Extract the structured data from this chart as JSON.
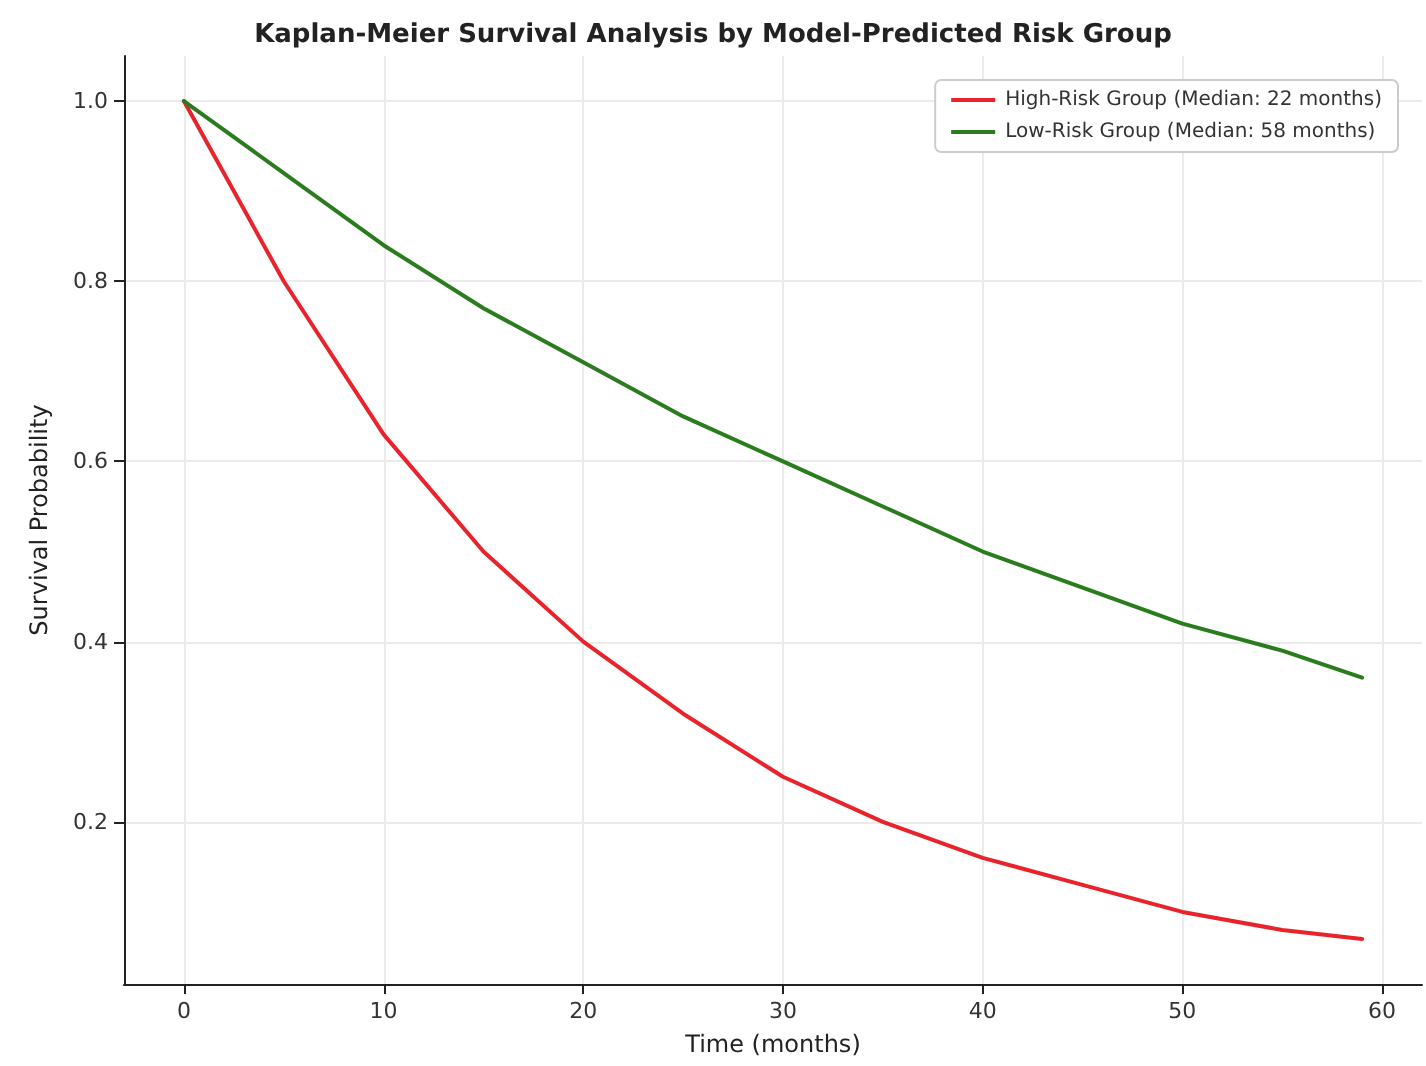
{
  "chart_data": {
    "type": "line",
    "title": "Kaplan-Meier Survival Analysis by Model-Predicted Risk Group",
    "xlabel": "Time (months)",
    "ylabel": "Survival Probability",
    "x": [
      0,
      5,
      10,
      15,
      20,
      25,
      30,
      35,
      40,
      45,
      50,
      55,
      59
    ],
    "series": [
      {
        "name": "High-Risk Group (Median: 22 months)",
        "color": "#e8232b",
        "values": [
          1.0,
          0.8,
          0.63,
          0.5,
          0.4,
          0.32,
          0.25,
          0.2,
          0.16,
          0.13,
          0.1,
          0.08,
          0.07
        ]
      },
      {
        "name": "Low-Risk Group (Median: 58 months)",
        "color": "#2b7b1f",
        "values": [
          1.0,
          0.92,
          0.84,
          0.77,
          0.71,
          0.65,
          0.6,
          0.55,
          0.5,
          0.46,
          0.42,
          0.39,
          0.36
        ]
      }
    ],
    "xlim": [
      -3,
      62
    ],
    "ylim": [
      0.02,
      1.05
    ],
    "xticks": [
      0,
      10,
      20,
      30,
      40,
      50,
      60
    ],
    "yticks": [
      {
        "value": 0.2,
        "label": "0.2"
      },
      {
        "value": 0.4,
        "label": "0.4"
      },
      {
        "value": 0.6,
        "label": "0.6"
      },
      {
        "value": 0.8,
        "label": "0.8"
      },
      {
        "value": 1,
        "label": "1.0"
      }
    ],
    "grid": true,
    "legend": "top right",
    "marker": "none",
    "line_style": "solid"
  }
}
